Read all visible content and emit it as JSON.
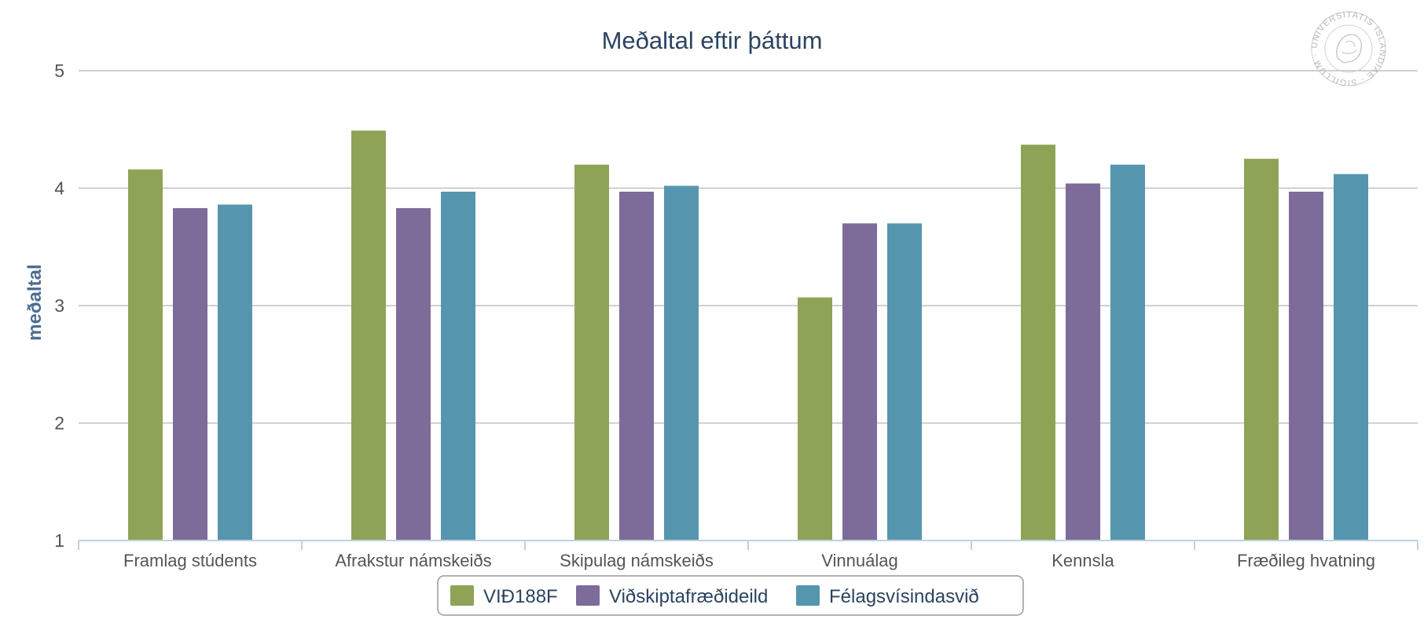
{
  "chart_data": {
    "type": "bar",
    "title": "Meðaltal eftir þáttum",
    "xlabel": "",
    "ylabel": "meðaltal",
    "ylim": [
      1,
      5
    ],
    "yticks": [
      1,
      2,
      3,
      4,
      5
    ],
    "grid": true,
    "legend_position": "bottom-center",
    "categories": [
      "Framlag stúdents",
      "Afrakstur námskeiðs",
      "Skipulag námskeiðs",
      "Vinnuálag",
      "Kennsla",
      "Fræðileg hvatning"
    ],
    "series": [
      {
        "name": "VIÐ188F",
        "color": "#8fa357",
        "values": [
          4.16,
          4.49,
          4.2,
          3.07,
          4.37,
          4.25
        ]
      },
      {
        "name": "Viðskiptafræðideild",
        "color": "#7d6b99",
        "values": [
          3.83,
          3.83,
          3.97,
          3.7,
          4.04,
          3.97
        ]
      },
      {
        "name": "Félagsvísindasvið",
        "color": "#5596ae",
        "values": [
          3.86,
          3.97,
          4.02,
          3.7,
          4.2,
          4.12
        ]
      }
    ]
  },
  "seal": {
    "text": "UNIVERSITATIS ISLANDIAE · SIGILLUM ·",
    "icon": "university-seal-icon",
    "color": "#bdbdbd"
  },
  "colors": {
    "grid": "#c0c0c0",
    "axis": "#c0d0e0",
    "title": "#2b4460",
    "ylabel": "#4d6d94"
  }
}
